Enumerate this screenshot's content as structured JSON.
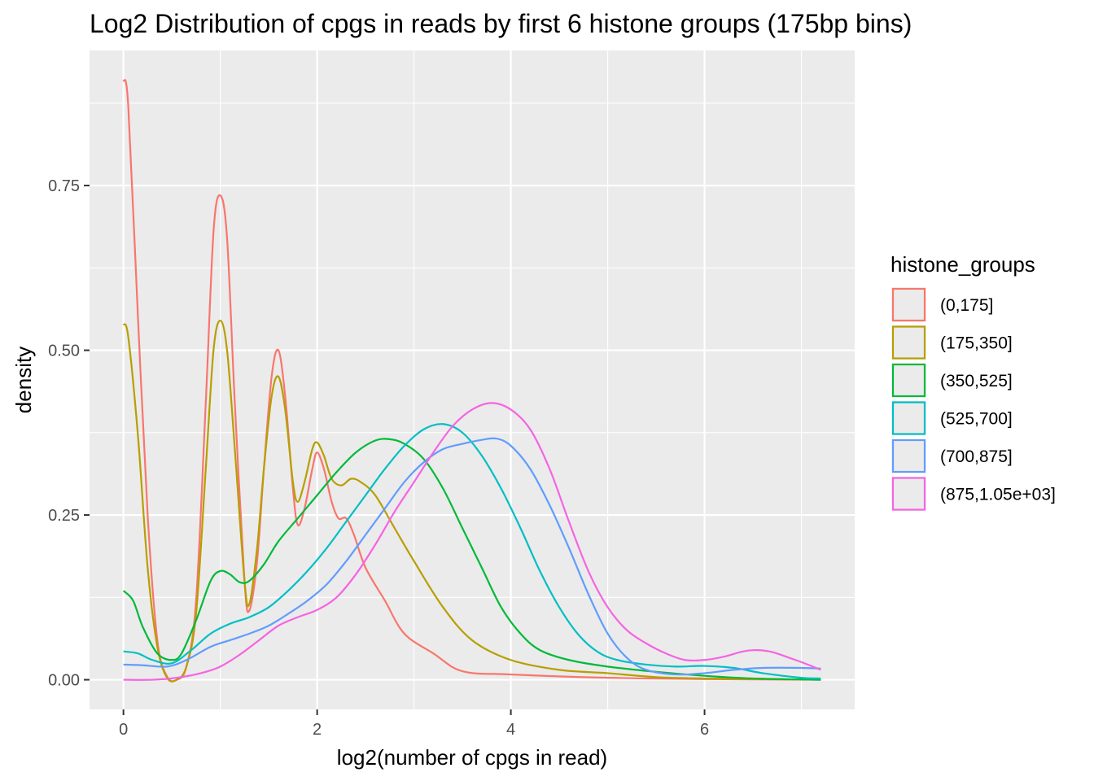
{
  "chart_data": {
    "type": "line",
    "title": "Log2 Distribution of cpgs in reads by first 6 histone groups (175bp bins)",
    "xlabel": "log2(number of cpgs in read)",
    "ylabel": "density",
    "xlim": [
      -0.35,
      7.55
    ],
    "ylim": [
      -0.045,
      0.955
    ],
    "x_ticks": [
      0,
      2,
      4,
      6
    ],
    "x_tick_labels": [
      "0",
      "2",
      "4",
      "6"
    ],
    "y_ticks": [
      0,
      0.25,
      0.5,
      0.75
    ],
    "y_tick_labels": [
      "0.00",
      "0.25",
      "0.50",
      "0.75"
    ],
    "grid": true,
    "background": "#ebebeb",
    "legend": {
      "title": "histone_groups",
      "position": "right"
    },
    "series": [
      {
        "name": "(0,175]",
        "color": "#F8766D",
        "points": [
          [
            0,
            0.91
          ],
          [
            0.05,
            0.87
          ],
          [
            0.15,
            0.55
          ],
          [
            0.25,
            0.25
          ],
          [
            0.35,
            0.06
          ],
          [
            0.45,
            0.005
          ],
          [
            0.55,
            0.0
          ],
          [
            0.65,
            0.02
          ],
          [
            0.75,
            0.12
          ],
          [
            0.85,
            0.42
          ],
          [
            0.93,
            0.68
          ],
          [
            1.0,
            0.735
          ],
          [
            1.07,
            0.67
          ],
          [
            1.15,
            0.42
          ],
          [
            1.25,
            0.15
          ],
          [
            1.3,
            0.105
          ],
          [
            1.38,
            0.18
          ],
          [
            1.45,
            0.32
          ],
          [
            1.53,
            0.46
          ],
          [
            1.6,
            0.5
          ],
          [
            1.67,
            0.43
          ],
          [
            1.75,
            0.29
          ],
          [
            1.8,
            0.235
          ],
          [
            1.87,
            0.26
          ],
          [
            1.95,
            0.32
          ],
          [
            2.0,
            0.345
          ],
          [
            2.07,
            0.32
          ],
          [
            2.15,
            0.27
          ],
          [
            2.22,
            0.245
          ],
          [
            2.3,
            0.245
          ],
          [
            2.38,
            0.22
          ],
          [
            2.5,
            0.17
          ],
          [
            2.7,
            0.12
          ],
          [
            2.9,
            0.07
          ],
          [
            3.2,
            0.04
          ],
          [
            3.5,
            0.013
          ],
          [
            4.0,
            0.008
          ],
          [
            5.0,
            0.003
          ],
          [
            6.0,
            0.001
          ],
          [
            7.2,
            0.0
          ]
        ]
      },
      {
        "name": "(175,350]",
        "color": "#B79F00",
        "points": [
          [
            0,
            0.54
          ],
          [
            0.05,
            0.52
          ],
          [
            0.15,
            0.37
          ],
          [
            0.25,
            0.17
          ],
          [
            0.35,
            0.05
          ],
          [
            0.45,
            0.003
          ],
          [
            0.55,
            0.0
          ],
          [
            0.65,
            0.02
          ],
          [
            0.75,
            0.1
          ],
          [
            0.85,
            0.32
          ],
          [
            0.93,
            0.5
          ],
          [
            1.0,
            0.545
          ],
          [
            1.07,
            0.5
          ],
          [
            1.15,
            0.35
          ],
          [
            1.25,
            0.15
          ],
          [
            1.3,
            0.115
          ],
          [
            1.38,
            0.2
          ],
          [
            1.45,
            0.32
          ],
          [
            1.53,
            0.43
          ],
          [
            1.6,
            0.46
          ],
          [
            1.67,
            0.41
          ],
          [
            1.75,
            0.3
          ],
          [
            1.8,
            0.27
          ],
          [
            1.87,
            0.3
          ],
          [
            1.95,
            0.35
          ],
          [
            2.0,
            0.36
          ],
          [
            2.07,
            0.34
          ],
          [
            2.15,
            0.305
          ],
          [
            2.25,
            0.295
          ],
          [
            2.35,
            0.305
          ],
          [
            2.45,
            0.3
          ],
          [
            2.6,
            0.28
          ],
          [
            2.8,
            0.23
          ],
          [
            3.0,
            0.18
          ],
          [
            3.3,
            0.11
          ],
          [
            3.6,
            0.06
          ],
          [
            4.0,
            0.03
          ],
          [
            4.5,
            0.015
          ],
          [
            5.0,
            0.01
          ],
          [
            5.5,
            0.004
          ],
          [
            6.0,
            0.002
          ],
          [
            7.2,
            0.0
          ]
        ]
      },
      {
        "name": "(350,525]",
        "color": "#00BA38",
        "points": [
          [
            0,
            0.135
          ],
          [
            0.1,
            0.12
          ],
          [
            0.2,
            0.08
          ],
          [
            0.35,
            0.04
          ],
          [
            0.5,
            0.03
          ],
          [
            0.6,
            0.04
          ],
          [
            0.75,
            0.09
          ],
          [
            0.9,
            0.15
          ],
          [
            1.0,
            0.165
          ],
          [
            1.1,
            0.16
          ],
          [
            1.2,
            0.148
          ],
          [
            1.3,
            0.15
          ],
          [
            1.45,
            0.175
          ],
          [
            1.6,
            0.21
          ],
          [
            1.8,
            0.245
          ],
          [
            2.0,
            0.28
          ],
          [
            2.2,
            0.315
          ],
          [
            2.4,
            0.345
          ],
          [
            2.6,
            0.363
          ],
          [
            2.75,
            0.365
          ],
          [
            2.9,
            0.358
          ],
          [
            3.1,
            0.335
          ],
          [
            3.3,
            0.29
          ],
          [
            3.5,
            0.23
          ],
          [
            3.7,
            0.17
          ],
          [
            3.9,
            0.11
          ],
          [
            4.1,
            0.07
          ],
          [
            4.3,
            0.045
          ],
          [
            4.6,
            0.03
          ],
          [
            5.0,
            0.02
          ],
          [
            5.5,
            0.012
          ],
          [
            6.0,
            0.006
          ],
          [
            6.5,
            0.002
          ],
          [
            7.2,
            0.0
          ]
        ]
      },
      {
        "name": "(525,700]",
        "color": "#00BFC4",
        "points": [
          [
            0,
            0.043
          ],
          [
            0.15,
            0.04
          ],
          [
            0.3,
            0.03
          ],
          [
            0.5,
            0.025
          ],
          [
            0.7,
            0.045
          ],
          [
            0.9,
            0.07
          ],
          [
            1.1,
            0.085
          ],
          [
            1.3,
            0.095
          ],
          [
            1.5,
            0.11
          ],
          [
            1.7,
            0.135
          ],
          [
            1.9,
            0.165
          ],
          [
            2.1,
            0.2
          ],
          [
            2.3,
            0.24
          ],
          [
            2.5,
            0.28
          ],
          [
            2.7,
            0.32
          ],
          [
            2.9,
            0.355
          ],
          [
            3.1,
            0.38
          ],
          [
            3.3,
            0.388
          ],
          [
            3.5,
            0.375
          ],
          [
            3.7,
            0.34
          ],
          [
            3.9,
            0.29
          ],
          [
            4.1,
            0.23
          ],
          [
            4.3,
            0.165
          ],
          [
            4.5,
            0.11
          ],
          [
            4.7,
            0.068
          ],
          [
            4.9,
            0.042
          ],
          [
            5.1,
            0.03
          ],
          [
            5.4,
            0.023
          ],
          [
            5.7,
            0.02
          ],
          [
            6.0,
            0.021
          ],
          [
            6.3,
            0.018
          ],
          [
            6.6,
            0.01
          ],
          [
            7.0,
            0.003
          ],
          [
            7.2,
            0.002
          ]
        ]
      },
      {
        "name": "(700,875]",
        "color": "#619CFF",
        "points": [
          [
            0,
            0.023
          ],
          [
            0.2,
            0.022
          ],
          [
            0.45,
            0.02
          ],
          [
            0.65,
            0.03
          ],
          [
            0.9,
            0.05
          ],
          [
            1.1,
            0.06
          ],
          [
            1.3,
            0.07
          ],
          [
            1.5,
            0.082
          ],
          [
            1.7,
            0.1
          ],
          [
            1.9,
            0.12
          ],
          [
            2.1,
            0.145
          ],
          [
            2.3,
            0.18
          ],
          [
            2.5,
            0.22
          ],
          [
            2.7,
            0.26
          ],
          [
            2.9,
            0.3
          ],
          [
            3.1,
            0.33
          ],
          [
            3.3,
            0.35
          ],
          [
            3.5,
            0.358
          ],
          [
            3.7,
            0.364
          ],
          [
            3.85,
            0.366
          ],
          [
            4.0,
            0.355
          ],
          [
            4.2,
            0.32
          ],
          [
            4.4,
            0.265
          ],
          [
            4.6,
            0.2
          ],
          [
            4.8,
            0.13
          ],
          [
            5.0,
            0.07
          ],
          [
            5.2,
            0.033
          ],
          [
            5.4,
            0.015
          ],
          [
            5.7,
            0.008
          ],
          [
            6.0,
            0.01
          ],
          [
            6.3,
            0.015
          ],
          [
            6.6,
            0.018
          ],
          [
            7.0,
            0.018
          ],
          [
            7.2,
            0.017
          ]
        ]
      },
      {
        "name": "(875,1.05e+03]",
        "color": "#F564E3",
        "points": [
          [
            0,
            0.0
          ],
          [
            0.3,
            0.0
          ],
          [
            0.55,
            0.003
          ],
          [
            0.8,
            0.01
          ],
          [
            1.0,
            0.02
          ],
          [
            1.2,
            0.038
          ],
          [
            1.4,
            0.06
          ],
          [
            1.6,
            0.082
          ],
          [
            1.8,
            0.095
          ],
          [
            2.0,
            0.106
          ],
          [
            2.2,
            0.125
          ],
          [
            2.4,
            0.16
          ],
          [
            2.6,
            0.205
          ],
          [
            2.8,
            0.255
          ],
          [
            3.0,
            0.3
          ],
          [
            3.2,
            0.345
          ],
          [
            3.4,
            0.385
          ],
          [
            3.6,
            0.41
          ],
          [
            3.8,
            0.42
          ],
          [
            4.0,
            0.41
          ],
          [
            4.2,
            0.38
          ],
          [
            4.4,
            0.32
          ],
          [
            4.6,
            0.24
          ],
          [
            4.8,
            0.165
          ],
          [
            5.0,
            0.11
          ],
          [
            5.2,
            0.075
          ],
          [
            5.4,
            0.055
          ],
          [
            5.6,
            0.04
          ],
          [
            5.8,
            0.03
          ],
          [
            6.0,
            0.03
          ],
          [
            6.2,
            0.035
          ],
          [
            6.4,
            0.043
          ],
          [
            6.55,
            0.045
          ],
          [
            6.7,
            0.042
          ],
          [
            6.9,
            0.032
          ],
          [
            7.05,
            0.024
          ],
          [
            7.2,
            0.015
          ]
        ]
      }
    ]
  }
}
